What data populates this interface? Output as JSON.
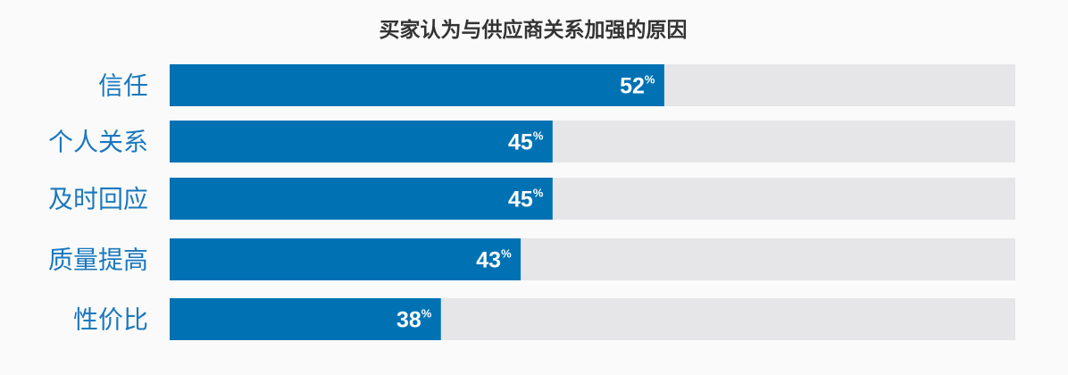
{
  "chart_data": {
    "type": "bar",
    "orientation": "horizontal",
    "title": "买家认为与供应商关系加强的原因",
    "categories": [
      "信任",
      "个人关系",
      "及时回应",
      "质量提高",
      "性价比"
    ],
    "values": [
      52,
      45,
      45,
      43,
      38
    ],
    "value_labels": [
      "52",
      "45",
      "45",
      "43",
      "38"
    ],
    "unit": "%",
    "xlim": [
      21,
      74
    ],
    "grid": false,
    "legend": "none",
    "colors": {
      "bar": "#0072b4",
      "track": "#e6e6e8",
      "category_label": "#1b78bd",
      "value_label": "#ffffff",
      "title": "#333333"
    }
  }
}
